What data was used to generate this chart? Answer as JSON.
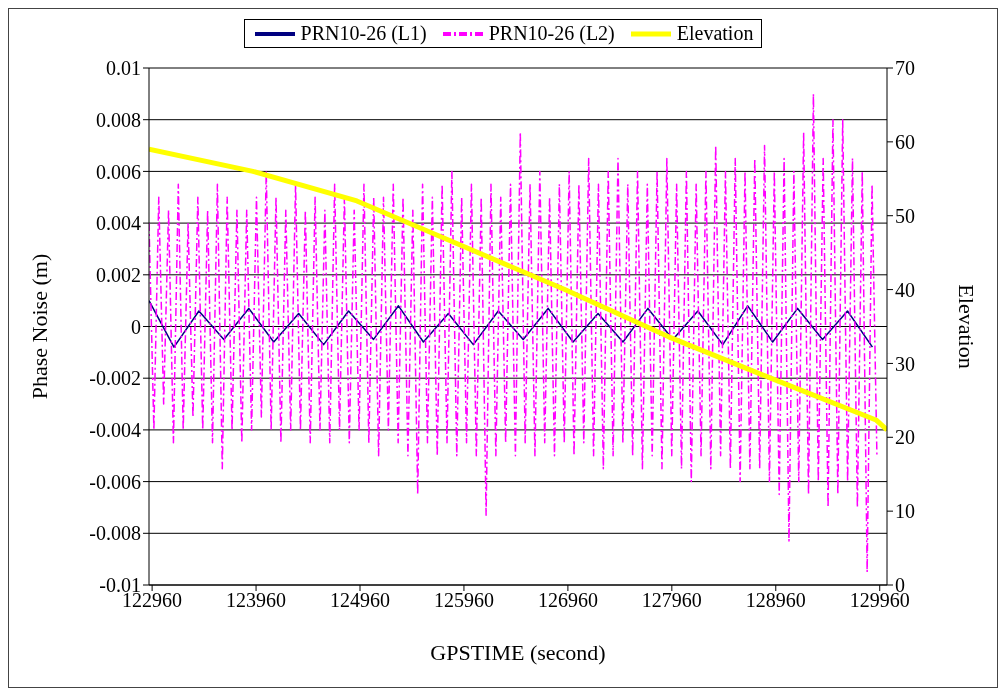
{
  "chart_data": {
    "type": "line",
    "xlabel": "GPSTIME (second)",
    "ylabel": "Phase Noise (m)",
    "y2label": "Elevation",
    "xlim": [
      122930,
      130030
    ],
    "xticks": [
      122960,
      123960,
      124960,
      125960,
      126960,
      127960,
      128960,
      129960
    ],
    "ylim": [
      -0.01,
      0.01
    ],
    "yticks": [
      -0.01,
      -0.008,
      -0.006,
      -0.004,
      -0.002,
      0,
      0.002,
      0.004,
      0.006,
      0.008,
      0.01
    ],
    "y2lim": [
      0,
      70
    ],
    "y2ticks": [
      0,
      10,
      20,
      30,
      40,
      50,
      60,
      70
    ],
    "grid": "y",
    "legend": "top",
    "marker": "none",
    "series": [
      {
        "name": "PRN10-26 (L1)",
        "color": "#000080",
        "line_style": "solid",
        "x": [
          122930,
          123170,
          123410,
          123650,
          123890,
          124130,
          124370,
          124610,
          124850,
          125090,
          125330,
          125570,
          125810,
          126050,
          126290,
          126530,
          126770,
          127010,
          127250,
          127490,
          127730,
          127970,
          128210,
          128450,
          128690,
          128930,
          129170,
          129410,
          129650,
          129890
        ],
        "values": [
          0.001,
          -0.0008,
          0.0006,
          -0.0005,
          0.0007,
          -0.0006,
          0.0005,
          -0.0007,
          0.0006,
          -0.0005,
          0.0008,
          -0.0006,
          0.0005,
          -0.0007,
          0.0006,
          -0.0005,
          0.0007,
          -0.0006,
          0.0005,
          -0.0006,
          0.0007,
          -0.0005,
          0.0006,
          -0.0007,
          0.0008,
          -0.0006,
          0.0007,
          -0.0005,
          0.0006,
          -0.0008
        ]
      },
      {
        "name": "PRN10-26 (L2)",
        "color": "#ff00ff",
        "line_style": "dashed",
        "x": [
          122930,
          122977,
          123024,
          123071,
          123118,
          123165,
          123212,
          123259,
          123306,
          123353,
          123400,
          123447,
          123494,
          123541,
          123588,
          123635,
          123682,
          123729,
          123776,
          123823,
          123870,
          123917,
          123964,
          124011,
          124058,
          124105,
          124152,
          124199,
          124246,
          124293,
          124340,
          124387,
          124434,
          124481,
          124528,
          124575,
          124622,
          124669,
          124716,
          124763,
          124810,
          124857,
          124904,
          124951,
          124998,
          125045,
          125092,
          125139,
          125186,
          125233,
          125280,
          125327,
          125374,
          125421,
          125468,
          125515,
          125562,
          125609,
          125656,
          125703,
          125750,
          125797,
          125844,
          125891,
          125938,
          125985,
          126032,
          126079,
          126126,
          126173,
          126220,
          126267,
          126314,
          126361,
          126408,
          126455,
          126502,
          126549,
          126596,
          126643,
          126690,
          126737,
          126784,
          126831,
          126878,
          126925,
          126972,
          127019,
          127066,
          127113,
          127160,
          127207,
          127254,
          127301,
          127348,
          127395,
          127442,
          127489,
          127536,
          127583,
          127630,
          127677,
          127724,
          127771,
          127818,
          127865,
          127912,
          127959,
          128006,
          128053,
          128100,
          128147,
          128194,
          128241,
          128288,
          128335,
          128382,
          128429,
          128476,
          128523,
          128570,
          128617,
          128664,
          128711,
          128758,
          128805,
          128852,
          128899,
          128946,
          128993,
          129040,
          129087,
          129134,
          129181,
          129228,
          129275,
          129322,
          129369,
          129416,
          129463,
          129510,
          129557,
          129604,
          129651,
          129698,
          129745,
          129792,
          129839,
          129886,
          129933
        ],
        "values": [
          0.004,
          -0.004,
          0.005,
          -0.003,
          0.0045,
          -0.0045,
          0.0055,
          -0.004,
          0.004,
          -0.0035,
          0.005,
          -0.004,
          0.0045,
          -0.0045,
          0.0055,
          -0.0055,
          0.005,
          -0.004,
          0.0045,
          -0.0045,
          0.0045,
          -0.004,
          0.005,
          -0.0035,
          0.006,
          -0.004,
          0.005,
          -0.0045,
          0.0045,
          -0.004,
          0.0055,
          -0.004,
          0.0045,
          -0.0045,
          0.005,
          -0.004,
          0.0045,
          -0.0045,
          0.0055,
          -0.004,
          0.005,
          -0.0045,
          0.0045,
          -0.004,
          0.0055,
          -0.0045,
          0.005,
          -0.005,
          0.005,
          -0.004,
          0.0055,
          -0.0045,
          0.005,
          -0.005,
          0.0045,
          -0.0065,
          0.0055,
          -0.0045,
          0.005,
          -0.005,
          0.0055,
          -0.0045,
          0.006,
          -0.005,
          0.005,
          -0.0045,
          0.0055,
          -0.005,
          0.005,
          -0.0073,
          0.0055,
          -0.005,
          0.005,
          -0.0045,
          0.0055,
          -0.005,
          0.0075,
          -0.0045,
          0.0055,
          -0.005,
          0.006,
          -0.0045,
          0.005,
          -0.005,
          0.0055,
          -0.0045,
          0.006,
          -0.005,
          0.0055,
          -0.0045,
          0.0065,
          -0.005,
          0.0055,
          -0.0055,
          0.006,
          -0.005,
          0.0065,
          -0.0045,
          0.0055,
          -0.005,
          0.006,
          -0.0055,
          0.0055,
          -0.005,
          0.006,
          -0.0055,
          0.0065,
          -0.005,
          0.0055,
          -0.0055,
          0.006,
          -0.006,
          0.0055,
          -0.005,
          0.006,
          -0.0055,
          0.007,
          -0.005,
          0.006,
          -0.0055,
          0.0065,
          -0.006,
          0.006,
          -0.0055,
          0.0065,
          -0.0055,
          0.007,
          -0.006,
          0.006,
          -0.0065,
          0.0065,
          -0.0083,
          0.006,
          -0.006,
          0.0075,
          -0.0065,
          0.009,
          -0.006,
          0.0065,
          -0.007,
          0.008,
          -0.0065,
          0.008,
          -0.006,
          0.0065,
          -0.007,
          0.006,
          -0.0095,
          0.0055,
          -0.005
        ]
      },
      {
        "name": "Elevation",
        "color": "#ffff00",
        "axis": "y2",
        "line_style": "solid",
        "x": [
          122930,
          123930,
          124930,
          125930,
          126930,
          127930,
          128930,
          129930,
          130030
        ],
        "values": [
          59,
          56,
          52,
          46,
          40,
          33.6,
          27.9,
          22.3,
          21
        ]
      }
    ]
  }
}
